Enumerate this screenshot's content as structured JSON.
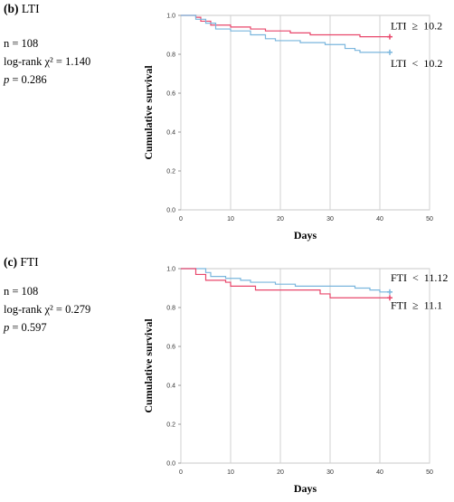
{
  "chart_data": [
    {
      "type": "line",
      "panel_label": "(b)",
      "panel_title": "LTI",
      "stats": {
        "n": "n = 108",
        "logrank": "log-rank χ² = 1.140",
        "p_label": "p",
        "p_value": " = 0.286"
      },
      "xlabel": "Days",
      "ylabel": "Cumulative survival",
      "xlim": [
        0,
        50
      ],
      "ylim": [
        0,
        1
      ],
      "xticks": [
        "0",
        "10",
        "20",
        "30",
        "40",
        "50"
      ],
      "yticks": [
        "0.0",
        "0.2",
        "0.4",
        "0.6",
        "0.8",
        "1.0"
      ],
      "grid": true,
      "series": [
        {
          "name": "LTI ≥ 10.2",
          "color": "#e8476b",
          "steps": [
            [
              0,
              1.0
            ],
            [
              3,
              0.99
            ],
            [
              4,
              0.97
            ],
            [
              6,
              0.95
            ],
            [
              10,
              0.94
            ],
            [
              14,
              0.93
            ],
            [
              17,
              0.92
            ],
            [
              22,
              0.91
            ],
            [
              26,
              0.9
            ],
            [
              36,
              0.89
            ],
            [
              42,
              0.89
            ]
          ]
        },
        {
          "name": "LTI < 10.2",
          "color": "#7ab6dd",
          "steps": [
            [
              0,
              1.0
            ],
            [
              3,
              0.98
            ],
            [
              5,
              0.96
            ],
            [
              7,
              0.93
            ],
            [
              10,
              0.92
            ],
            [
              14,
              0.9
            ],
            [
              17,
              0.88
            ],
            [
              19,
              0.87
            ],
            [
              24,
              0.86
            ],
            [
              29,
              0.85
            ],
            [
              33,
              0.83
            ],
            [
              35,
              0.82
            ],
            [
              36,
              0.81
            ],
            [
              42,
              0.81
            ]
          ]
        }
      ]
    },
    {
      "type": "line",
      "panel_label": "(c)",
      "panel_title": "FTI",
      "stats": {
        "n": "n = 108",
        "logrank": "log-rank χ² = 0.279",
        "p_label": "p",
        "p_value": " = 0.597"
      },
      "xlabel": "Days",
      "ylabel": "Cumulative survival",
      "xlim": [
        0,
        50
      ],
      "ylim": [
        0,
        1
      ],
      "xticks": [
        "0",
        "10",
        "20",
        "30",
        "40",
        "50"
      ],
      "yticks": [
        "0.0",
        "0.2",
        "0.4",
        "0.6",
        "0.8",
        "1.0"
      ],
      "grid": true,
      "series": [
        {
          "name": "FTI < 11.12",
          "color": "#7ab6dd",
          "steps": [
            [
              0,
              1.0
            ],
            [
              5,
              0.98
            ],
            [
              6,
              0.96
            ],
            [
              9,
              0.95
            ],
            [
              12,
              0.94
            ],
            [
              14,
              0.93
            ],
            [
              19,
              0.92
            ],
            [
              23,
              0.91
            ],
            [
              35,
              0.9
            ],
            [
              38,
              0.89
            ],
            [
              40,
              0.88
            ],
            [
              42,
              0.88
            ]
          ]
        },
        {
          "name": "FTI ≥ 11.1",
          "color": "#e8476b",
          "steps": [
            [
              0,
              1.0
            ],
            [
              3,
              0.97
            ],
            [
              5,
              0.94
            ],
            [
              9,
              0.93
            ],
            [
              10,
              0.91
            ],
            [
              15,
              0.89
            ],
            [
              28,
              0.87
            ],
            [
              30,
              0.85
            ],
            [
              42,
              0.85
            ]
          ]
        }
      ]
    }
  ]
}
